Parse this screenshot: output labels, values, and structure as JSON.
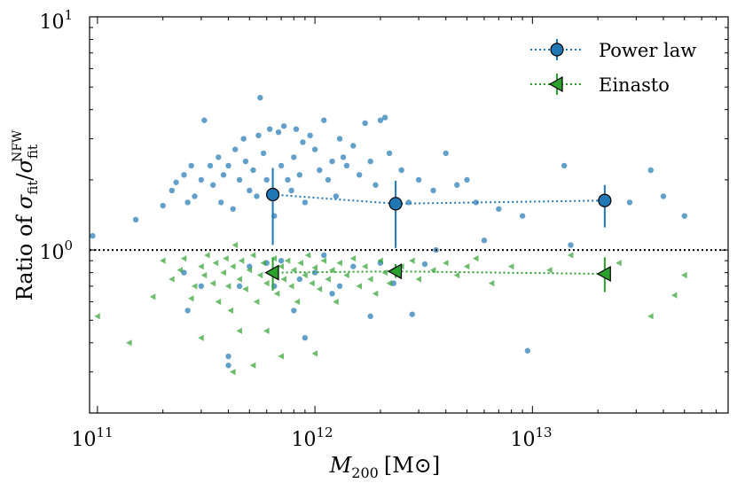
{
  "chart_data": {
    "type": "scatter",
    "title": "",
    "xlabel": "M200 [M⊙]",
    "xlabel_parts": {
      "main": "M",
      "sub": "200",
      "unit": "[M⊙]"
    },
    "ylabel": "Ratio of σfit/σfit NFW",
    "ylabel_parts": {
      "prefix": "Ratio of ",
      "sigma": "σ",
      "sub": "fit",
      "sup": "NFW"
    },
    "xscale": "log",
    "yscale": "log",
    "xlim": [
      92000000000.0,
      79400000000000.0
    ],
    "ylim": [
      0.2,
      10
    ],
    "x_ticks": [
      {
        "value": 100000000000.0,
        "base": "10",
        "exp": "11"
      },
      {
        "value": 1000000000000.0,
        "base": "10",
        "exp": "12"
      },
      {
        "value": 10000000000000.0,
        "base": "10",
        "exp": "13"
      }
    ],
    "y_ticks": [
      {
        "value": 1,
        "base": "10",
        "exp": "0"
      },
      {
        "value": 10,
        "base": "10",
        "exp": "1"
      }
    ],
    "reference_line": {
      "y": 1,
      "style": "dotted",
      "color": "#000000"
    },
    "legend": {
      "location": "top-right",
      "entries": [
        "Power law",
        "Einasto"
      ]
    },
    "series": [
      {
        "name": "Power law",
        "marker": "circle",
        "color": "#1f77b4",
        "points": [
          [
            95000000000.0,
            1.15
          ],
          [
            150000000000.0,
            1.35
          ],
          [
            200000000000.0,
            1.55
          ],
          [
            220000000000.0,
            1.8
          ],
          [
            230000000000.0,
            1.95
          ],
          [
            250000000000.0,
            2.1
          ],
          [
            260000000000.0,
            1.6
          ],
          [
            270000000000.0,
            2.3
          ],
          [
            280000000000.0,
            1.7
          ],
          [
            300000000000.0,
            2.0
          ],
          [
            310000000000.0,
            3.6
          ],
          [
            330000000000.0,
            2.3
          ],
          [
            340000000000.0,
            1.9
          ],
          [
            360000000000.0,
            2.5
          ],
          [
            370000000000.0,
            1.6
          ],
          [
            380000000000.0,
            2.1
          ],
          [
            400000000000.0,
            2.3
          ],
          [
            420000000000.0,
            1.5
          ],
          [
            430000000000.0,
            2.7
          ],
          [
            450000000000.0,
            2.0
          ],
          [
            470000000000.0,
            3.0
          ],
          [
            480000000000.0,
            2.4
          ],
          [
            500000000000.0,
            1.8
          ],
          [
            520000000000.0,
            2.2
          ],
          [
            540000000000.0,
            1.7
          ],
          [
            550000000000.0,
            3.1
          ],
          [
            560000000000.0,
            4.5
          ],
          [
            580000000000.0,
            2.6
          ],
          [
            600000000000.0,
            2.0
          ],
          [
            620000000000.0,
            3.3
          ],
          [
            650000000000.0,
            1.4
          ],
          [
            680000000000.0,
            3.2
          ],
          [
            700000000000.0,
            2.3
          ],
          [
            720000000000.0,
            3.4
          ],
          [
            750000000000.0,
            2.0
          ],
          [
            780000000000.0,
            1.8
          ],
          [
            800000000000.0,
            2.5
          ],
          [
            820000000000.0,
            3.3
          ],
          [
            850000000000.0,
            2.1
          ],
          [
            880000000000.0,
            2.9
          ],
          [
            900000000000.0,
            1.6
          ],
          [
            950000000000.0,
            3.1
          ],
          [
            1000000000000.0,
            2.7
          ],
          [
            1050000000000.0,
            2.2
          ],
          [
            1100000000000.0,
            3.6
          ],
          [
            1150000000000.0,
            2.0
          ],
          [
            1200000000000.0,
            2.4
          ],
          [
            1250000000000.0,
            1.7
          ],
          [
            1300000000000.0,
            3.0
          ],
          [
            1350000000000.0,
            2.5
          ],
          [
            1400000000000.0,
            2.3
          ],
          [
            1500000000000.0,
            2.8
          ],
          [
            1600000000000.0,
            2.1
          ],
          [
            1700000000000.0,
            3.5
          ],
          [
            1800000000000.0,
            2.4
          ],
          [
            1900000000000.0,
            1.9
          ],
          [
            2000000000000.0,
            3.6
          ],
          [
            2100000000000.0,
            3.7
          ],
          [
            2200000000000.0,
            2.6
          ],
          [
            2500000000000.0,
            2.2
          ],
          [
            2700000000000.0,
            1.6
          ],
          [
            3000000000000.0,
            2.0
          ],
          [
            3500000000000.0,
            1.8
          ],
          [
            4000000000000.0,
            2.6
          ],
          [
            4500000000000.0,
            1.9
          ],
          [
            5000000000000.0,
            2.0
          ],
          [
            5500000000000.0,
            1.6
          ],
          [
            6000000000000.0,
            1.1
          ],
          [
            7000000000000.0,
            1.5
          ],
          [
            9000000000000.0,
            1.4
          ],
          [
            14000000000000.0,
            2.3
          ],
          [
            22000000000000.0,
            1.6
          ],
          [
            28000000000000.0,
            1.6
          ],
          [
            35000000000000.0,
            2.2
          ],
          [
            40000000000000.0,
            1.7
          ],
          [
            50000000000000.0,
            1.4
          ],
          [
            250000000000.0,
            0.8
          ],
          [
            260000000000.0,
            0.55
          ],
          [
            300000000000.0,
            0.7
          ],
          [
            400000000000.0,
            0.32
          ],
          [
            400000000000.0,
            0.35
          ],
          [
            450000000000.0,
            0.7
          ],
          [
            500000000000.0,
            0.85
          ],
          [
            600000000000.0,
            0.88
          ],
          [
            650000000000.0,
            0.7
          ],
          [
            700000000000.0,
            0.9
          ],
          [
            800000000000.0,
            0.55
          ],
          [
            850000000000.0,
            0.75
          ],
          [
            900000000000.0,
            0.42
          ],
          [
            1000000000000.0,
            0.8
          ],
          [
            1100000000000.0,
            0.95
          ],
          [
            1200000000000.0,
            0.65
          ],
          [
            1300000000000.0,
            0.7
          ],
          [
            1500000000000.0,
            0.85
          ],
          [
            1800000000000.0,
            0.52
          ],
          [
            2000000000000.0,
            0.88
          ],
          [
            2300000000000.0,
            0.72
          ],
          [
            2800000000000.0,
            0.53
          ],
          [
            3200000000000.0,
            0.87
          ],
          [
            3600000000000.0,
            1.0
          ],
          [
            9500000000000.0,
            0.37
          ],
          [
            15000000000000.0,
            1.05
          ]
        ],
        "binned": [
          {
            "x": 640000000000.0,
            "y": 1.73,
            "yerr_low": 1.05,
            "yerr_high": 2.25
          },
          {
            "x": 2350000000000.0,
            "y": 1.58,
            "yerr_low": 1.02,
            "yerr_high": 1.98
          },
          {
            "x": 21500000000000.0,
            "y": 1.63,
            "yerr_low": 1.25,
            "yerr_high": 1.9
          }
        ]
      },
      {
        "name": "Einasto",
        "marker": "triangle-left",
        "color": "#2ca02c",
        "points": [
          [
            100000000000.0,
            0.52
          ],
          [
            140000000000.0,
            0.4
          ],
          [
            180000000000.0,
            0.63
          ],
          [
            200000000000.0,
            0.9
          ],
          [
            220000000000.0,
            0.75
          ],
          [
            240000000000.0,
            0.82
          ],
          [
            250000000000.0,
            0.92
          ],
          [
            270000000000.0,
            0.62
          ],
          [
            280000000000.0,
            0.7
          ],
          [
            300000000000.0,
            0.85
          ],
          [
            310000000000.0,
            0.78
          ],
          [
            320000000000.0,
            0.95
          ],
          [
            340000000000.0,
            0.72
          ],
          [
            350000000000.0,
            0.88
          ],
          [
            360000000000.0,
            0.6
          ],
          [
            380000000000.0,
            0.8
          ],
          [
            390000000000.0,
            0.92
          ],
          [
            400000000000.0,
            0.7
          ],
          [
            410000000000.0,
            0.55
          ],
          [
            420000000000.0,
            0.85
          ],
          [
            430000000000.0,
            1.05
          ],
          [
            450000000000.0,
            0.75
          ],
          [
            460000000000.0,
            0.9
          ],
          [
            480000000000.0,
            0.68
          ],
          [
            500000000000.0,
            0.82
          ],
          [
            520000000000.0,
            0.95
          ],
          [
            540000000000.0,
            0.6
          ],
          [
            560000000000.0,
            0.78
          ],
          [
            580000000000.0,
            0.88
          ],
          [
            600000000000.0,
            0.72
          ],
          [
            620000000000.0,
            0.8
          ],
          [
            650000000000.0,
            0.92
          ],
          [
            670000000000.0,
            0.65
          ],
          [
            700000000000.0,
            0.85
          ],
          [
            720000000000.0,
            0.75
          ],
          [
            750000000000.0,
            0.9
          ],
          [
            780000000000.0,
            0.7
          ],
          [
            800000000000.0,
            0.82
          ],
          [
            830000000000.0,
            0.6
          ],
          [
            860000000000.0,
            0.88
          ],
          [
            900000000000.0,
            0.78
          ],
          [
            930000000000.0,
            0.95
          ],
          [
            970000000000.0,
            0.72
          ],
          [
            1000000000000.0,
            0.84
          ],
          [
            1050000000000.0,
            0.68
          ],
          [
            1100000000000.0,
            0.9
          ],
          [
            1150000000000.0,
            0.75
          ],
          [
            1200000000000.0,
            0.82
          ],
          [
            1250000000000.0,
            0.6
          ],
          [
            1300000000000.0,
            0.88
          ],
          [
            1400000000000.0,
            0.78
          ],
          [
            1500000000000.0,
            0.92
          ],
          [
            1600000000000.0,
            0.7
          ],
          [
            1700000000000.0,
            0.85
          ],
          [
            1800000000000.0,
            0.75
          ],
          [
            1900000000000.0,
            0.65
          ],
          [
            2000000000000.0,
            0.9
          ],
          [
            2100000000000.0,
            0.8
          ],
          [
            2200000000000.0,
            0.72
          ],
          [
            2500000000000.0,
            0.85
          ],
          [
            2800000000000.0,
            0.9
          ],
          [
            3000000000000.0,
            0.75
          ],
          [
            3500000000000.0,
            0.82
          ],
          [
            4000000000000.0,
            0.88
          ],
          [
            4500000000000.0,
            0.78
          ],
          [
            5000000000000.0,
            0.85
          ],
          [
            5500000000000.0,
            0.92
          ],
          [
            6500000000000.0,
            0.72
          ],
          [
            8000000000000.0,
            0.85
          ],
          [
            12000000000000.0,
            0.82
          ],
          [
            15000000000000.0,
            0.95
          ],
          [
            25000000000000.0,
            0.88
          ],
          [
            35000000000000.0,
            0.52
          ],
          [
            45000000000000.0,
            0.64
          ],
          [
            50000000000000.0,
            0.78
          ],
          [
            420000000000.0,
            0.3
          ],
          [
            520000000000.0,
            0.32
          ],
          [
            700000000000.0,
            0.35
          ],
          [
            1000000000000.0,
            0.36
          ],
          [
            450000000000.0,
            0.45
          ],
          [
            300000000000.0,
            0.42
          ],
          [
            600000000000.0,
            0.45
          ]
        ],
        "binned": [
          {
            "x": 640000000000.0,
            "y": 0.8,
            "yerr_low": 0.67,
            "yerr_high": 0.93
          },
          {
            "x": 2350000000000.0,
            "y": 0.81,
            "yerr_low": 0.76,
            "yerr_high": 0.87
          },
          {
            "x": 21500000000000.0,
            "y": 0.79,
            "yerr_low": 0.66,
            "yerr_high": 0.93
          }
        ]
      }
    ]
  }
}
